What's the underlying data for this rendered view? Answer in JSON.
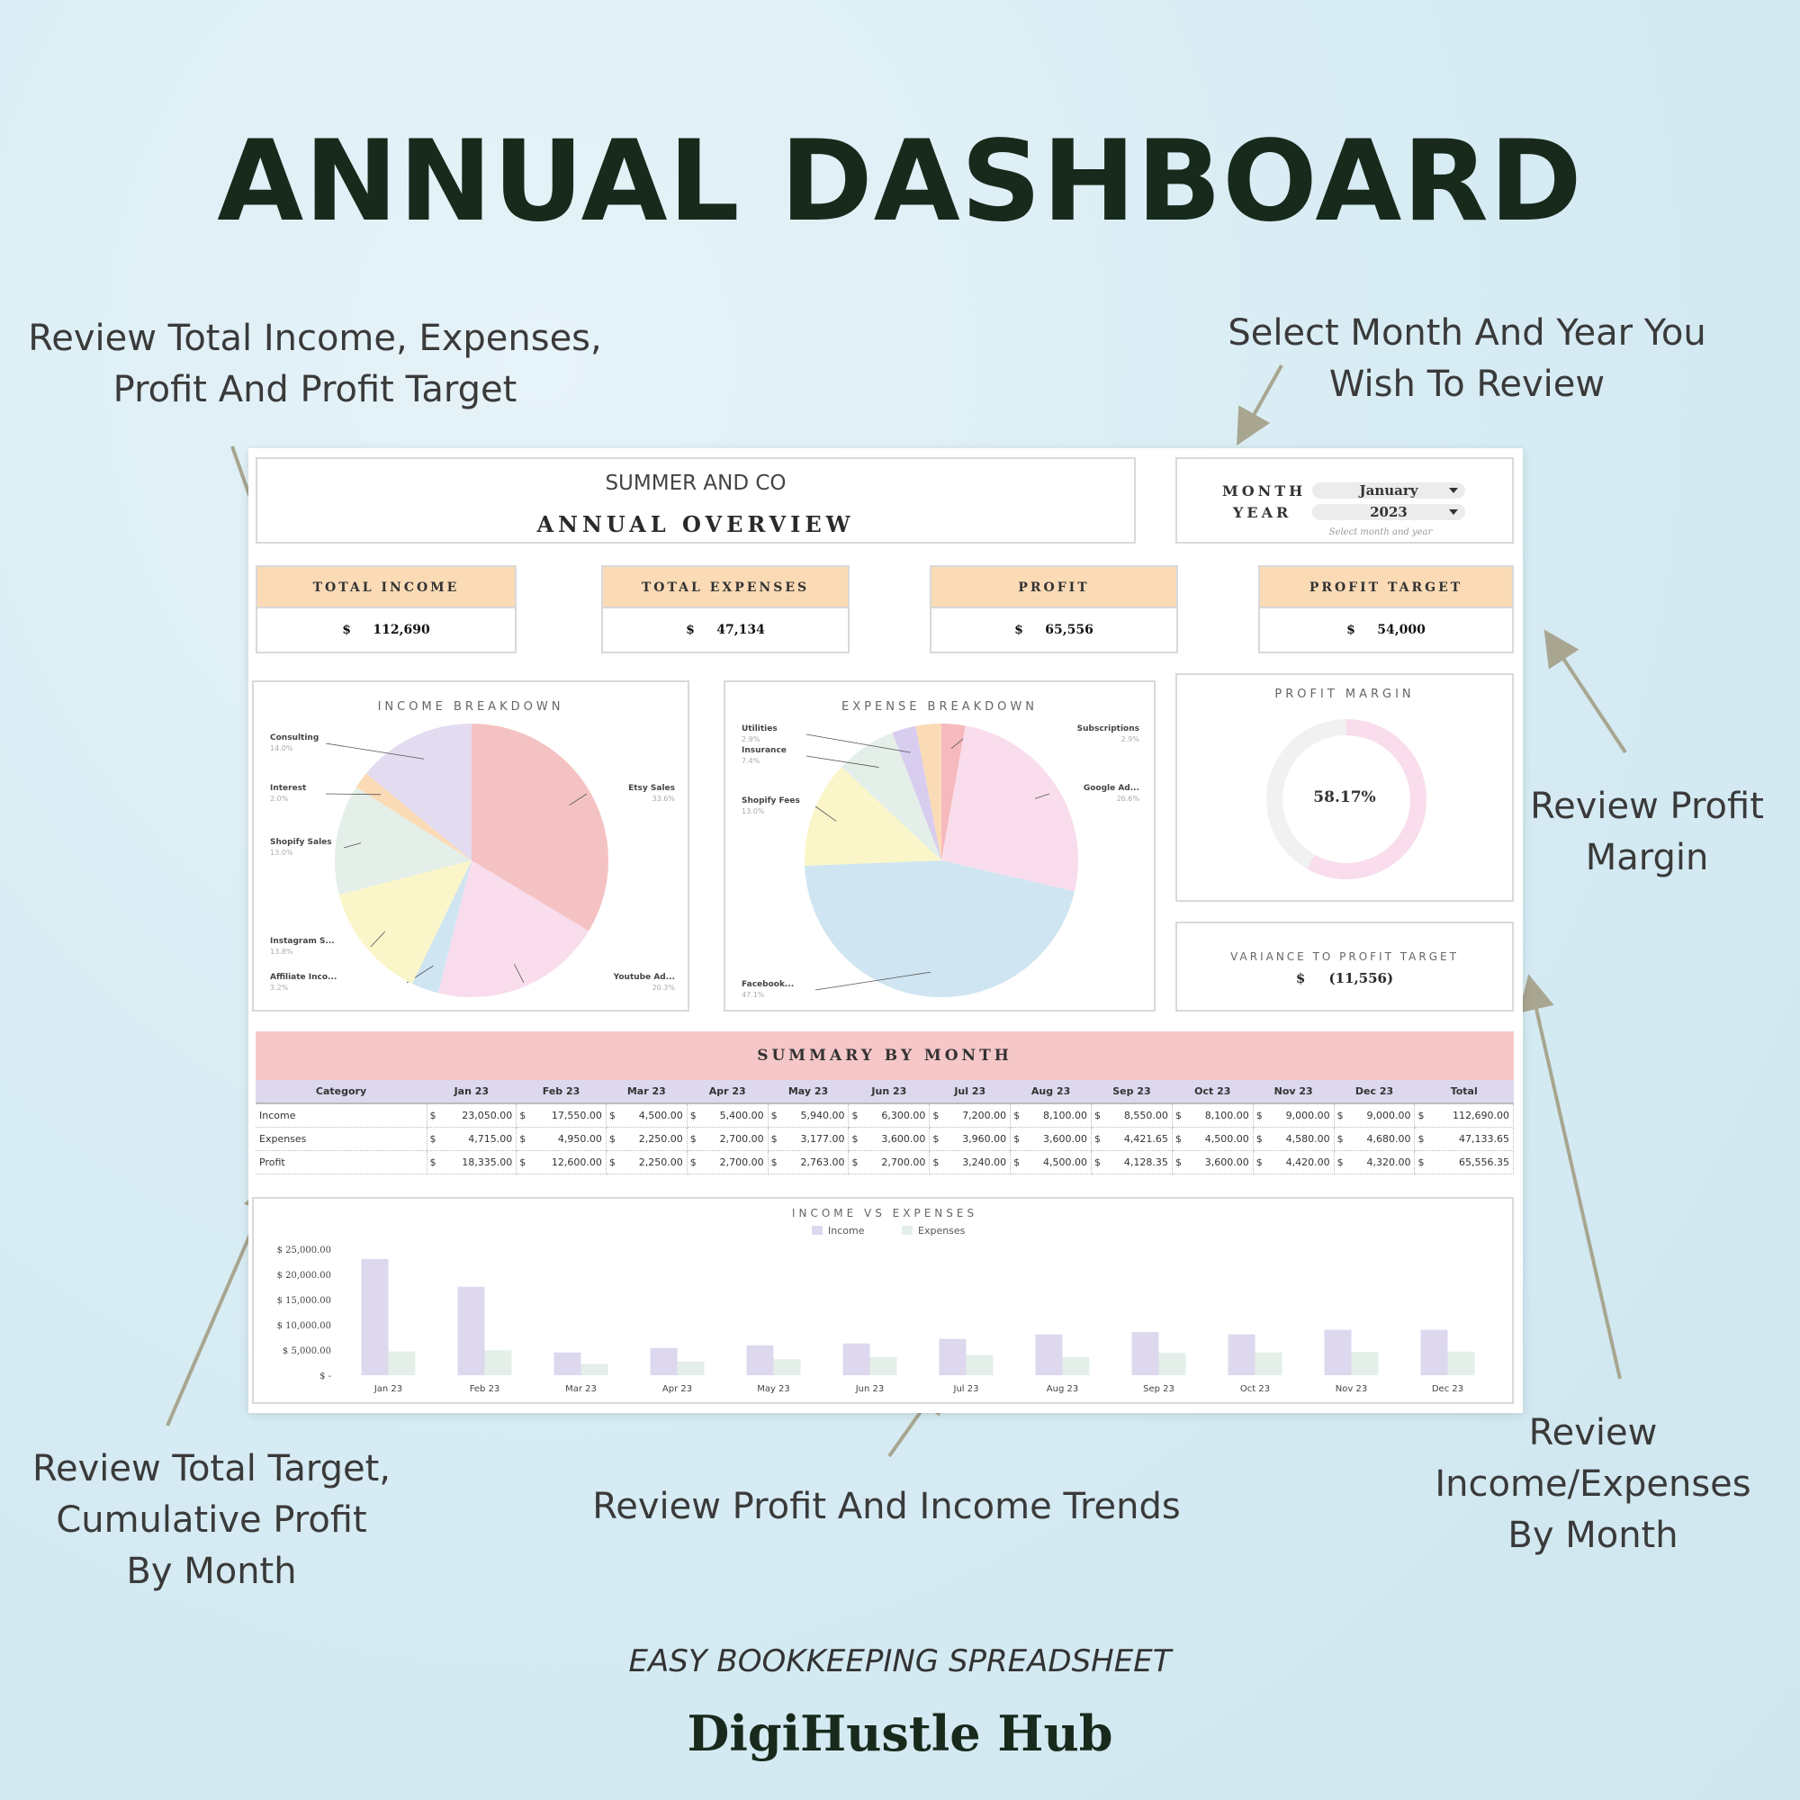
{
  "headline": "ANNUAL DASHBOARD",
  "annotations": {
    "top_left": [
      "Review Total Income, Expenses,",
      "Profit And Profit Target"
    ],
    "top_right": [
      "Select Month And Year You",
      "Wish To Review"
    ],
    "right_margin": [
      "Review Profit",
      "Margin"
    ],
    "bottom_left": [
      "Review Total Target,",
      "Cumulative Profit",
      "By Month"
    ],
    "bottom_center": [
      "Review Profit And Income Trends"
    ],
    "bottom_right": [
      "Review",
      "Income/Expenses",
      "By Month"
    ]
  },
  "sheet": {
    "company": "SUMMER AND CO",
    "overview_title": "ANNUAL OVERVIEW",
    "selector": {
      "month_label": "MONTH",
      "year_label": "YEAR",
      "month_value": "January",
      "year_value": "2023",
      "hint": "Select month and year"
    },
    "kpis": [
      {
        "label": "TOTAL INCOME",
        "value": "$     112,690"
      },
      {
        "label": "TOTAL EXPENSES",
        "value": "$     47,134"
      },
      {
        "label": "PROFIT",
        "value": "$     65,556"
      },
      {
        "label": "PROFIT TARGET",
        "value": "$     54,000"
      }
    ],
    "income_breakdown": {
      "title": "INCOME BREAKDOWN",
      "slices": [
        {
          "label": "Etsy Sales",
          "pct": "33.6%",
          "value": 33.6,
          "color": "#f4c2c2"
        },
        {
          "label": "Youtube Ad...",
          "pct": "20.3%",
          "value": 20.3,
          "color": "#f9ddec"
        },
        {
          "label": "Affiliate Inco...",
          "pct": "3.2%",
          "value": 3.2,
          "color": "#cfe5f1"
        },
        {
          "label": "Instagram S...",
          "pct": "13.8%",
          "value": 13.8,
          "color": "#fbf6c9"
        },
        {
          "label": "Shopify Sales",
          "pct": "13.0%",
          "value": 13.0,
          "color": "#e3efe8"
        },
        {
          "label": "Interest",
          "pct": "2.0%",
          "value": 2.0,
          "color": "#fbdbb6"
        },
        {
          "label": "Consulting",
          "pct": "14.0%",
          "value": 14.0,
          "color": "#e3dbf0"
        }
      ]
    },
    "expense_breakdown": {
      "title": "EXPENSE BREAKDOWN",
      "slices": [
        {
          "label": "Subscriptions",
          "pct": "2.9%",
          "value": 2.9,
          "color": "#f6b9bd"
        },
        {
          "label": "Google Ad...",
          "pct": "26.6%",
          "value": 26.6,
          "color": "#f9ddec"
        },
        {
          "label": "Facebook...",
          "pct": "47.1%",
          "value": 47.1,
          "color": "#cfe5f1"
        },
        {
          "label": "Shopify Fees",
          "pct": "13.0%",
          "value": 13.0,
          "color": "#fbf6c9"
        },
        {
          "label": "Insurance",
          "pct": "7.4%",
          "value": 7.4,
          "color": "#e3efe8"
        },
        {
          "label": "Utilities",
          "pct": "2.9%",
          "value": 2.9,
          "color": "#d8cdee"
        },
        {
          "label": "",
          "pct": "",
          "value": 3.1,
          "color": "#fbdbb6"
        }
      ]
    },
    "profit_margin": {
      "title": "PROFIT MARGIN",
      "value_text": "58.17%",
      "value": 58.17
    },
    "variance": {
      "title": "VARIANCE TO PROFIT TARGET",
      "value": "$     (11,556)"
    },
    "summary": {
      "title": "SUMMARY BY MONTH",
      "headers": [
        "Category",
        "Jan 23",
        "Feb 23",
        "Mar 23",
        "Apr 23",
        "May 23",
        "Jun 23",
        "Jul 23",
        "Aug 23",
        "Sep 23",
        "Oct 23",
        "Nov 23",
        "Dec 23",
        "Total"
      ],
      "rows": [
        {
          "category": "Income",
          "cells": [
            "23,050.00",
            "17,550.00",
            "4,500.00",
            "5,400.00",
            "5,940.00",
            "6,300.00",
            "7,200.00",
            "8,100.00",
            "8,550.00",
            "8,100.00",
            "9,000.00",
            "9,000.00",
            "112,690.00"
          ]
        },
        {
          "category": "Expenses",
          "cells": [
            "4,715.00",
            "4,950.00",
            "2,250.00",
            "2,700.00",
            "3,177.00",
            "3,600.00",
            "3,960.00",
            "3,600.00",
            "4,421.65",
            "4,500.00",
            "4,580.00",
            "4,680.00",
            "47,133.65"
          ]
        },
        {
          "category": "Profit",
          "cells": [
            "18,335.00",
            "12,600.00",
            "2,250.00",
            "2,700.00",
            "2,763.00",
            "2,700.00",
            "3,240.00",
            "4,500.00",
            "4,128.35",
            "3,600.00",
            "4,420.00",
            "4,320.00",
            "65,556.35"
          ]
        }
      ]
    }
  },
  "chart_data": {
    "type": "bar",
    "title": "INCOME VS EXPENSES",
    "categories": [
      "Jan 23",
      "Feb 23",
      "Mar 23",
      "Apr 23",
      "May 23",
      "Jun 23",
      "Jul 23",
      "Aug 23",
      "Sep 23",
      "Oct 23",
      "Nov 23",
      "Dec 23"
    ],
    "series": [
      {
        "name": "Income",
        "values": [
          23050,
          17550,
          4500,
          5400,
          5940,
          6300,
          7200,
          8100,
          8550,
          8100,
          9000,
          9000
        ],
        "color": "#ddd8ee"
      },
      {
        "name": "Expenses",
        "values": [
          4715,
          4950,
          2250,
          2700,
          3177,
          3600,
          3960,
          3600,
          4421.65,
          4500,
          4580,
          4680
        ],
        "color": "#e3efe8"
      }
    ],
    "yticks": [
      "$ 25,000.00",
      "$ 20,000.00",
      "$ 15,000.00",
      "$ 10,000.00",
      "$ 5,000.00",
      "$ -"
    ],
    "ylim": [
      0,
      25000
    ],
    "legend_position": "top-center",
    "grid": false
  },
  "footer": {
    "subtitle": "EASY BOOKKEEPING SPREADSHEET",
    "brand": "DigiHustle Hub"
  }
}
